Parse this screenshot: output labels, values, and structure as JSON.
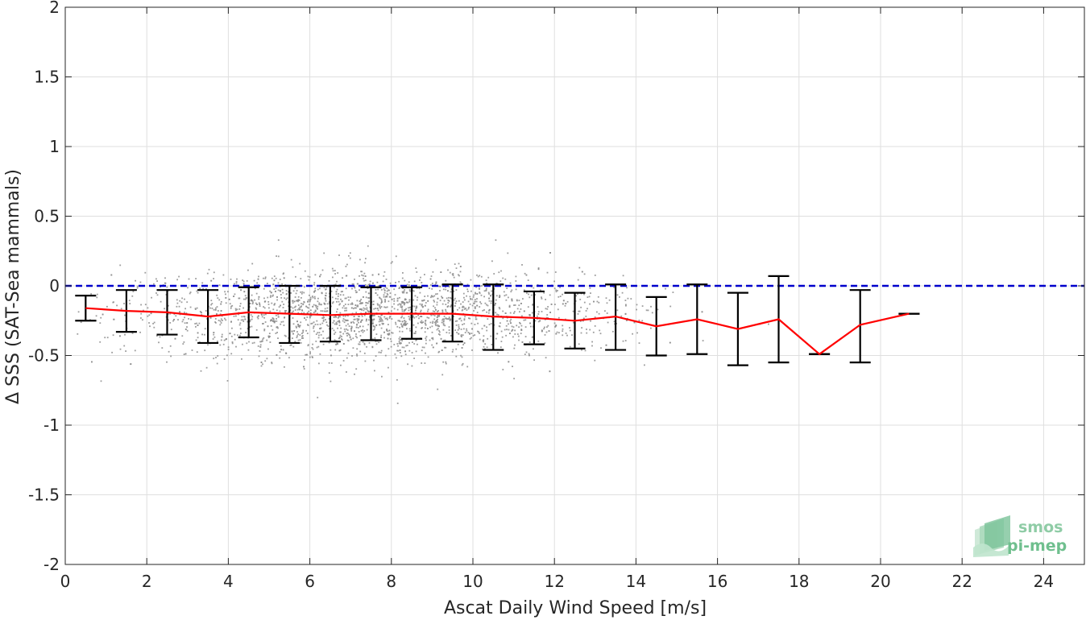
{
  "chart_data": {
    "type": "scatter",
    "xlabel": "Ascat Daily Wind Speed [m/s]",
    "ylabel": "Δ SSS (SAT-Sea mammals)",
    "xlim": [
      0,
      25
    ],
    "ylim": [
      -2,
      2
    ],
    "xticks": [
      0,
      2,
      4,
      6,
      8,
      10,
      12,
      14,
      16,
      18,
      20,
      22,
      24
    ],
    "yticks": [
      -2,
      -1.5,
      -1,
      -0.5,
      0,
      0.5,
      1,
      1.5,
      2
    ],
    "grid": true,
    "reference_line": {
      "y": 0,
      "color": "#0000cc",
      "style": "dashed"
    },
    "mean_line": {
      "color": "#ff0000",
      "x": [
        0.5,
        1.5,
        2.5,
        3.5,
        4.5,
        5.5,
        6.5,
        7.5,
        8.5,
        9.5,
        10.5,
        11.5,
        12.5,
        13.5,
        14.5,
        15.5,
        16.5,
        17.5,
        18.5,
        19.5,
        20.7
      ],
      "y": [
        -0.16,
        -0.18,
        -0.19,
        -0.22,
        -0.19,
        -0.2,
        -0.21,
        -0.2,
        -0.2,
        -0.2,
        -0.22,
        -0.23,
        -0.25,
        -0.22,
        -0.29,
        -0.24,
        -0.31,
        -0.24,
        -0.49,
        -0.28,
        -0.2
      ]
    },
    "error_bars": {
      "color": "#000000",
      "x": [
        0.5,
        1.5,
        2.5,
        3.5,
        4.5,
        5.5,
        6.5,
        7.5,
        8.5,
        9.5,
        10.5,
        11.5,
        12.5,
        13.5,
        14.5,
        15.5,
        16.5,
        17.5,
        18.5,
        19.5,
        20.7
      ],
      "lower": [
        -0.25,
        -0.33,
        -0.35,
        -0.41,
        -0.37,
        -0.41,
        -0.4,
        -0.39,
        -0.38,
        -0.4,
        -0.46,
        -0.42,
        -0.45,
        -0.46,
        -0.5,
        -0.49,
        -0.57,
        -0.55,
        -0.49,
        -0.55,
        -0.2
      ],
      "upper": [
        -0.07,
        -0.03,
        -0.03,
        -0.03,
        -0.01,
        0.0,
        0.0,
        -0.01,
        -0.01,
        0.01,
        0.01,
        -0.04,
        -0.05,
        0.01,
        -0.08,
        0.01,
        -0.05,
        0.07,
        -0.49,
        -0.03,
        -0.2
      ]
    },
    "scatter_points": {
      "color": "#8c8c8c",
      "approx_count": 2500,
      "x_range": [
        0.3,
        20.5
      ],
      "y_center": -0.2,
      "y_spread": 0.16
    }
  },
  "logo": {
    "line1": "smos",
    "line2": "pi-mep",
    "color": "#6fbf8e"
  }
}
